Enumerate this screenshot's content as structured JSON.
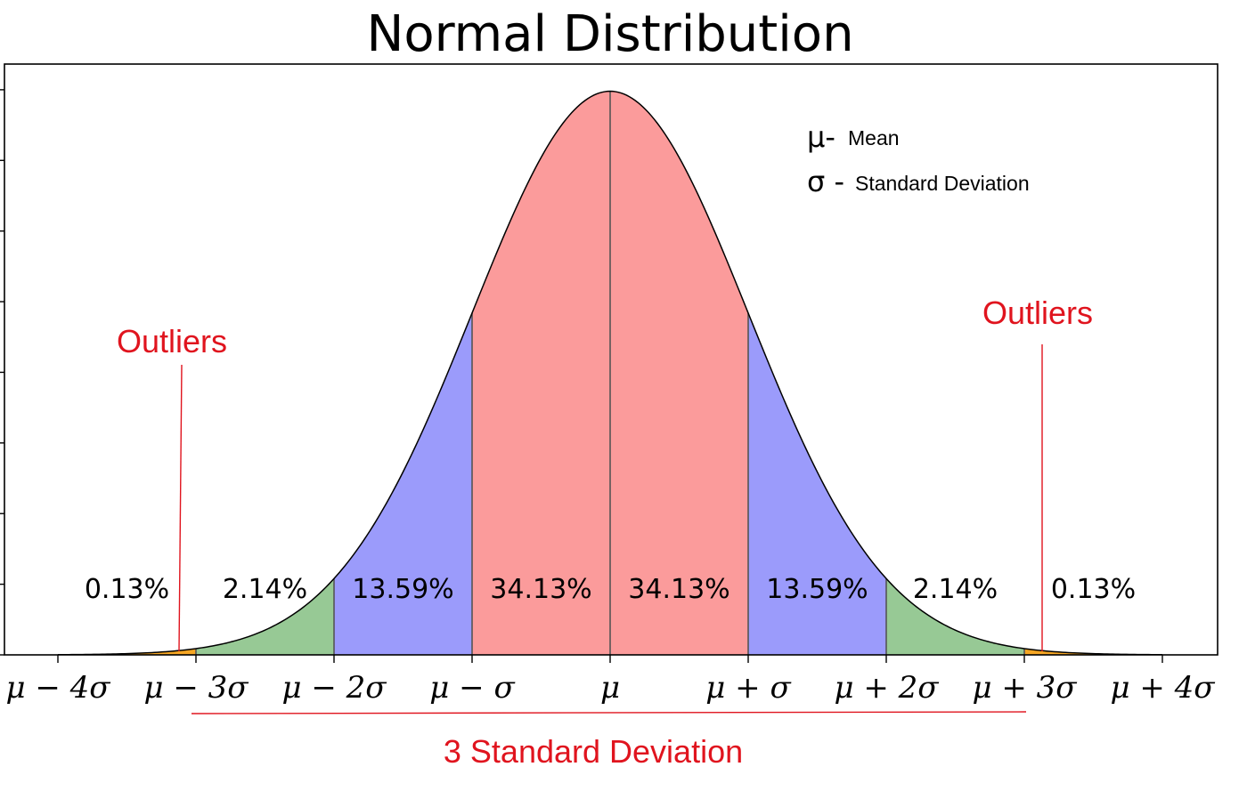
{
  "chart_data": {
    "type": "area",
    "title": "Normal Distribution",
    "xlabel": "",
    "ylabel": "",
    "xlim": [
      -4,
      4
    ],
    "ylim": [
      0,
      0.41
    ],
    "grid": false,
    "function": "standard normal pdf",
    "bands": [
      {
        "from": -4,
        "to": -3,
        "label": "0.13%",
        "percent": 0.13,
        "color": "#f5a623"
      },
      {
        "from": -3,
        "to": -2,
        "label": "2.14%",
        "percent": 2.14,
        "color": "#97c995"
      },
      {
        "from": -2,
        "to": -1,
        "label": "13.59%",
        "percent": 13.59,
        "color": "#9b9bfb"
      },
      {
        "from": -1,
        "to": 0,
        "label": "34.13%",
        "percent": 34.13,
        "color": "#fb9b9b"
      },
      {
        "from": 0,
        "to": 1,
        "label": "34.13%",
        "percent": 34.13,
        "color": "#fb9b9b"
      },
      {
        "from": 1,
        "to": 2,
        "label": "13.59%",
        "percent": 13.59,
        "color": "#9b9bfb"
      },
      {
        "from": 2,
        "to": 3,
        "label": "2.14%",
        "percent": 2.14,
        "color": "#97c995"
      },
      {
        "from": 3,
        "to": 4,
        "label": "0.13%",
        "percent": 0.13,
        "color": "#f5a623"
      }
    ],
    "x_ticks": [
      {
        "value": -4,
        "label": "μ − 4σ"
      },
      {
        "value": -3,
        "label": "μ − 3σ"
      },
      {
        "value": -2,
        "label": "μ − 2σ"
      },
      {
        "value": -1,
        "label": "μ − σ"
      },
      {
        "value": 0,
        "label": "μ"
      },
      {
        "value": 1,
        "label": "μ + σ"
      },
      {
        "value": 2,
        "label": "μ + 2σ"
      },
      {
        "value": 3,
        "label": "μ + 3σ"
      },
      {
        "value": 4,
        "label": "μ + 4σ"
      }
    ],
    "y_tick_count": 9,
    "legend": {
      "placement": "top-right",
      "items": [
        {
          "symbol": "μ-",
          "text": "Mean"
        },
        {
          "symbol": "σ -",
          "text": "Standard Deviation"
        }
      ]
    },
    "annotations": {
      "outliers_left": {
        "text": "Outliers",
        "points_to": -3
      },
      "outliers_right": {
        "text": "Outliers",
        "points_to": 3
      },
      "range_label": {
        "text": "3 Standard Deviation",
        "from": -3,
        "to": 3
      }
    },
    "colors": {
      "annotation": "#e0141e",
      "curve": "#000000",
      "divider": "#555555"
    }
  }
}
